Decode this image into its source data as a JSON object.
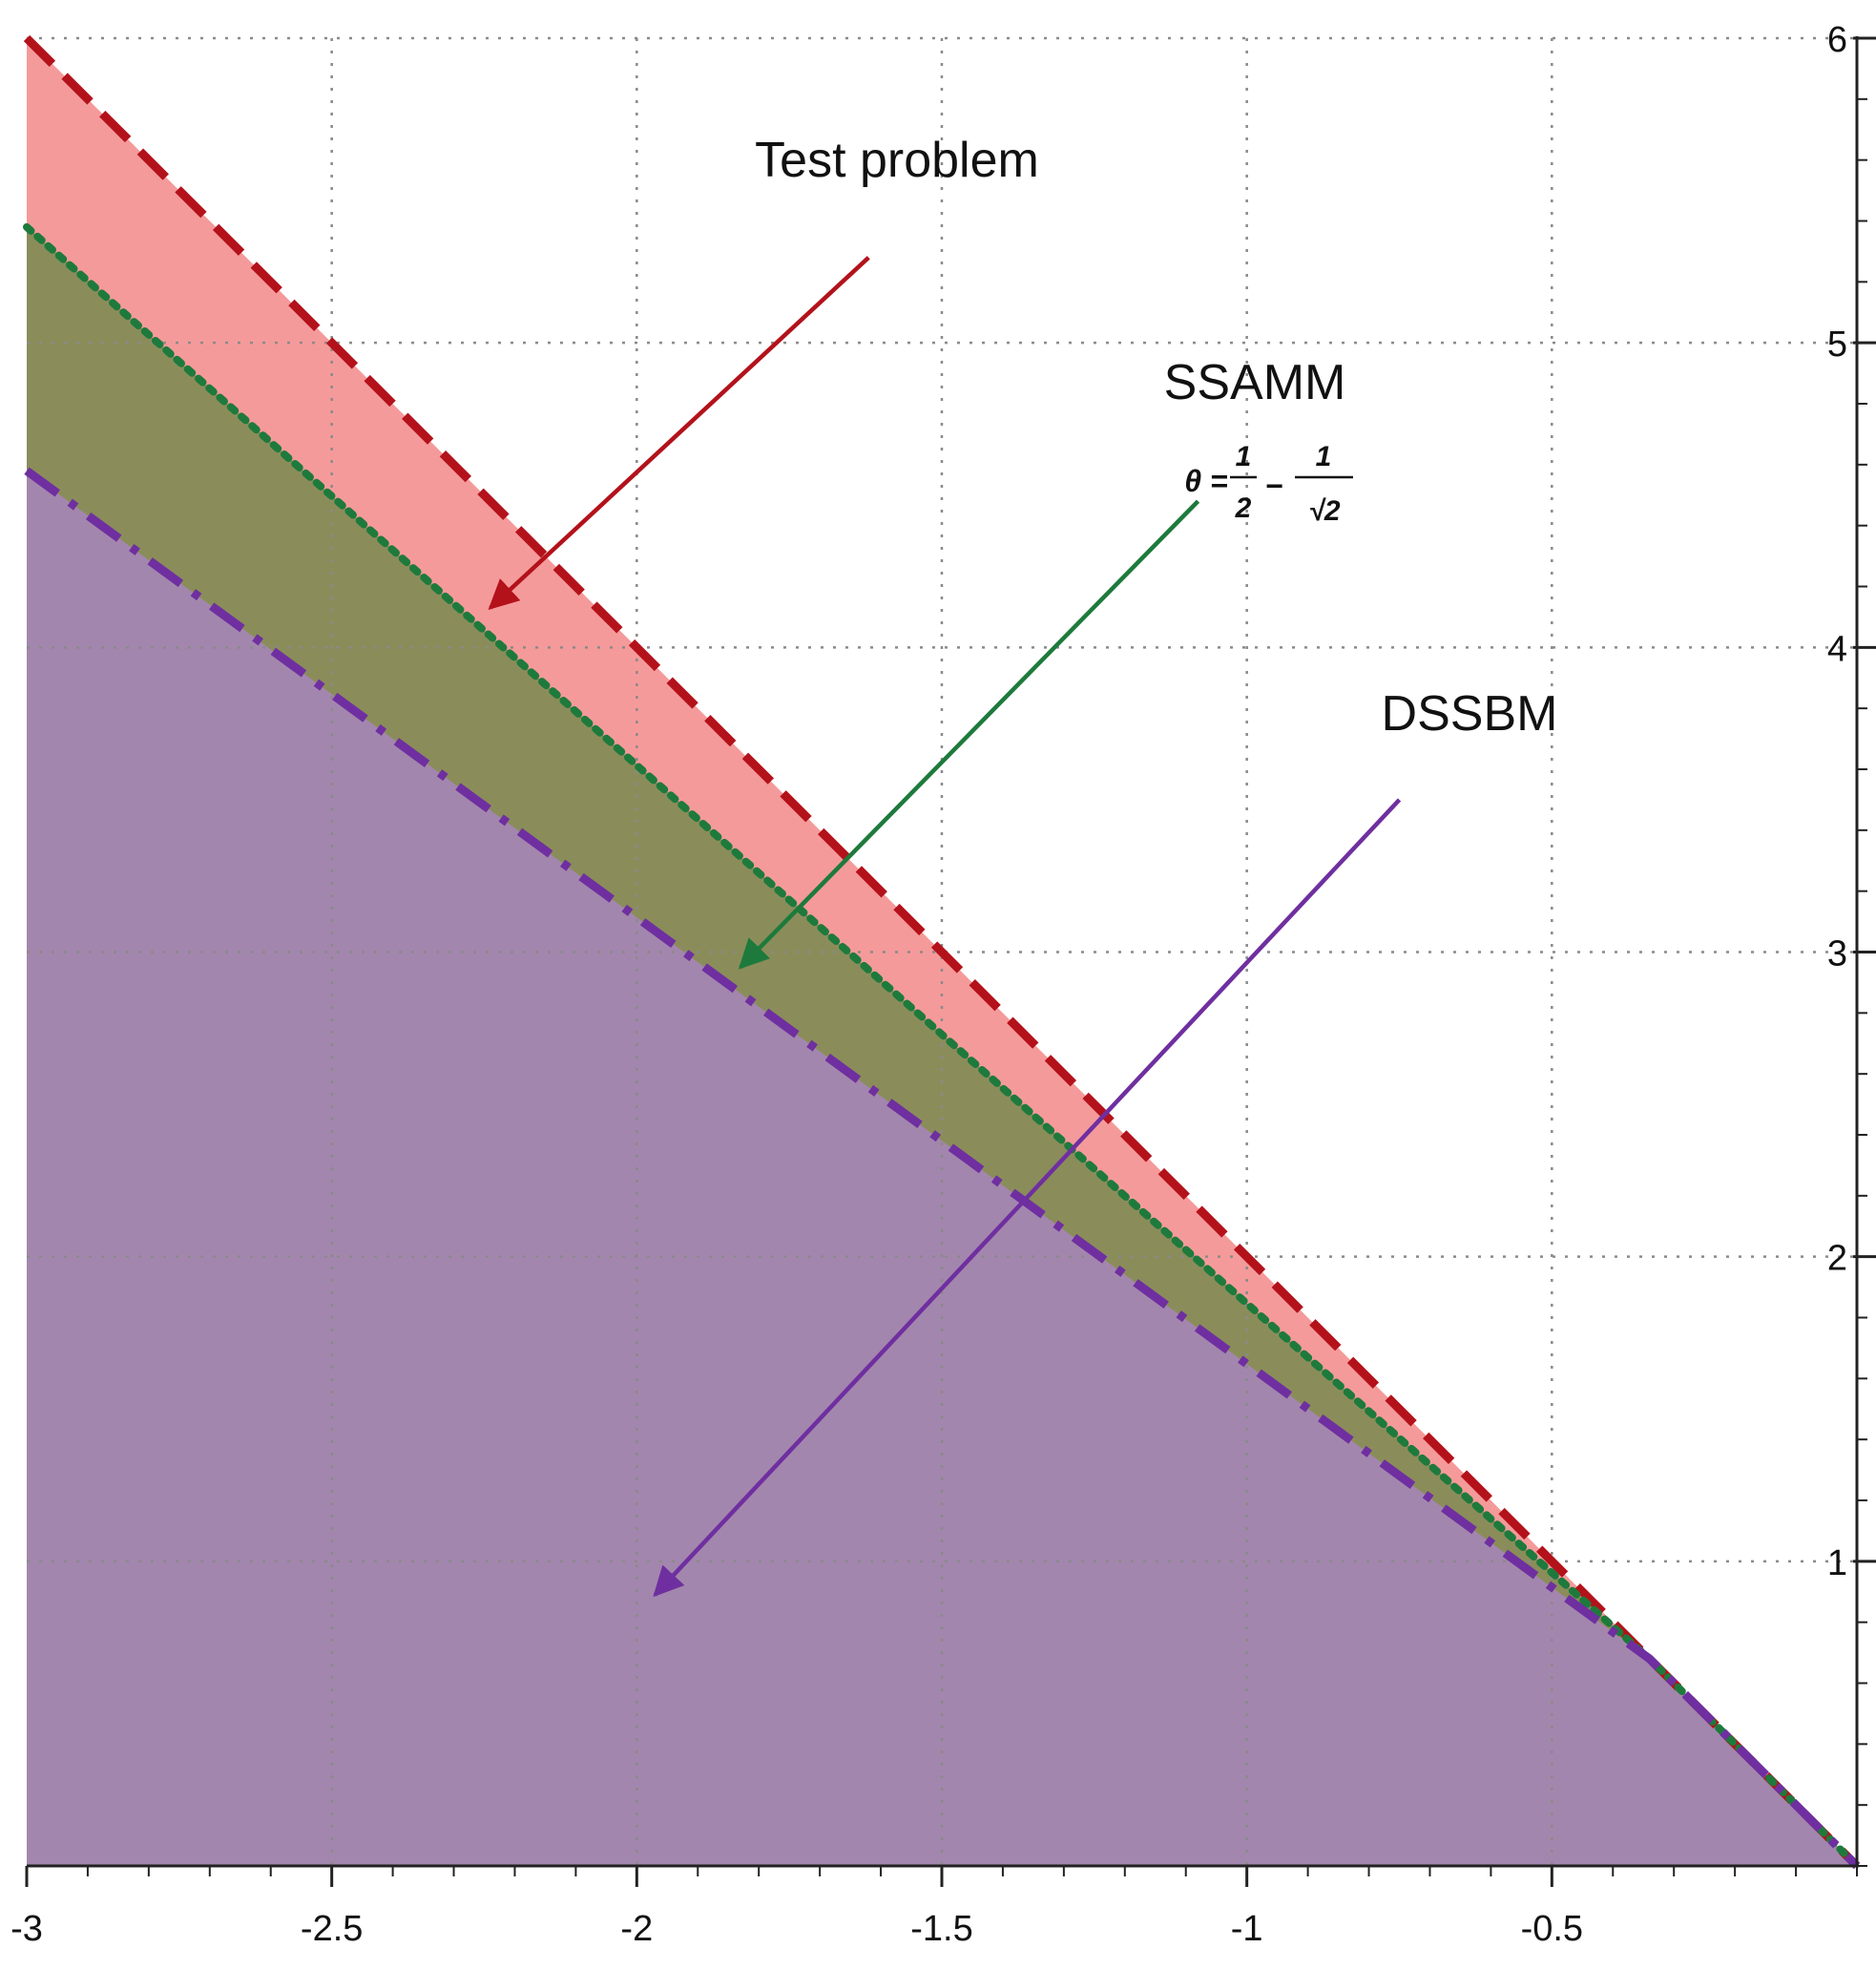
{
  "chart_data": {
    "type": "area",
    "title": "",
    "xlabel": "",
    "ylabel": "",
    "xlim": [
      -3,
      0
    ],
    "ylim": [
      0,
      6
    ],
    "grid": true,
    "x_ticks": [
      -3,
      -2.5,
      -2,
      -1.5,
      -1,
      -0.5
    ],
    "x_tick_labels": [
      "-3",
      "-2.5",
      "-2",
      "-1.5",
      "-1",
      "-0.5"
    ],
    "y_ticks": [
      1,
      2,
      3,
      4,
      5,
      6
    ],
    "y_tick_labels": [
      "1",
      "2",
      "3",
      "4",
      "5",
      "6"
    ],
    "y_axis_side": "right",
    "series": [
      {
        "key": "test",
        "line_style": "dashed",
        "line_color": "#b3121b",
        "fill_color": "#f59a9a",
        "x": [
          -3,
          0
        ],
        "y": [
          6,
          0
        ]
      },
      {
        "key": "ssamm",
        "line_style": "dotted",
        "line_color": "#1e7a3c",
        "fill_color": "#8a8d5a",
        "x": [
          -3,
          -0.34,
          0
        ],
        "y": [
          5.38,
          0.68,
          0
        ]
      },
      {
        "key": "dssbm",
        "line_style": "dashdot",
        "line_color": "#6f2fa0",
        "fill_color": "#a386ad",
        "x": [
          -3,
          -0.34,
          0
        ],
        "y": [
          4.58,
          0.68,
          0
        ]
      }
    ],
    "annotations": [
      {
        "key": "test",
        "text": "Test problem",
        "color": "#b3121b",
        "arrow_from": [
          -1.62,
          5.28
        ],
        "arrow_to": [
          -2.24,
          4.13
        ]
      },
      {
        "key": "ssamm",
        "text": "SSAMM",
        "color": "#1e7a3c",
        "formula_lhs": "θ =",
        "formula_parts": [
          "1",
          "2",
          "1",
          "√2"
        ],
        "formula_minus": "−",
        "arrow_from": [
          -1.08,
          4.48
        ],
        "arrow_to": [
          -1.83,
          2.95
        ]
      },
      {
        "key": "dssbm",
        "text": "DSSBM",
        "color": "#6f2fa0",
        "arrow_from": [
          -0.75,
          3.5
        ],
        "arrow_to": [
          -1.97,
          0.89
        ]
      }
    ]
  }
}
